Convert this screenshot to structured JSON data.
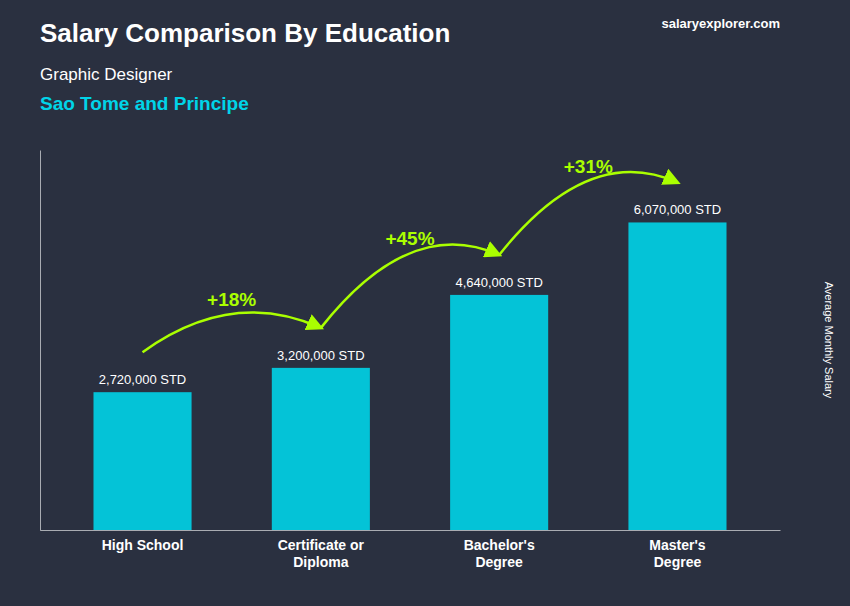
{
  "chart_data": {
    "type": "bar",
    "title": "Salary Comparison By Education",
    "subtitle": [
      "Graphic Designer",
      "Sao Tome and Principe"
    ],
    "ylabel": "Average Monthly Salary",
    "source": "salaryexplorer.com",
    "categories": [
      "High School",
      "Certificate or\nDiploma",
      "Bachelor's\nDegree",
      "Master's\nDegree"
    ],
    "values": [
      2720000,
      3200000,
      4640000,
      6070000
    ],
    "value_labels": [
      "2,720,000 STD",
      "3,200,000 STD",
      "4,640,000 STD",
      "6,070,000 STD"
    ],
    "data_labels": true,
    "color": "#00d4e8",
    "ylim": [
      0,
      7500000
    ],
    "tick_labels": "x",
    "grid": false,
    "annotations": [
      {
        "text": "+18%",
        "color": "#aaff00"
      },
      {
        "text": "+45%",
        "color": "#aaff00"
      },
      {
        "text": "+31%",
        "color": "#aaff00"
      }
    ]
  }
}
